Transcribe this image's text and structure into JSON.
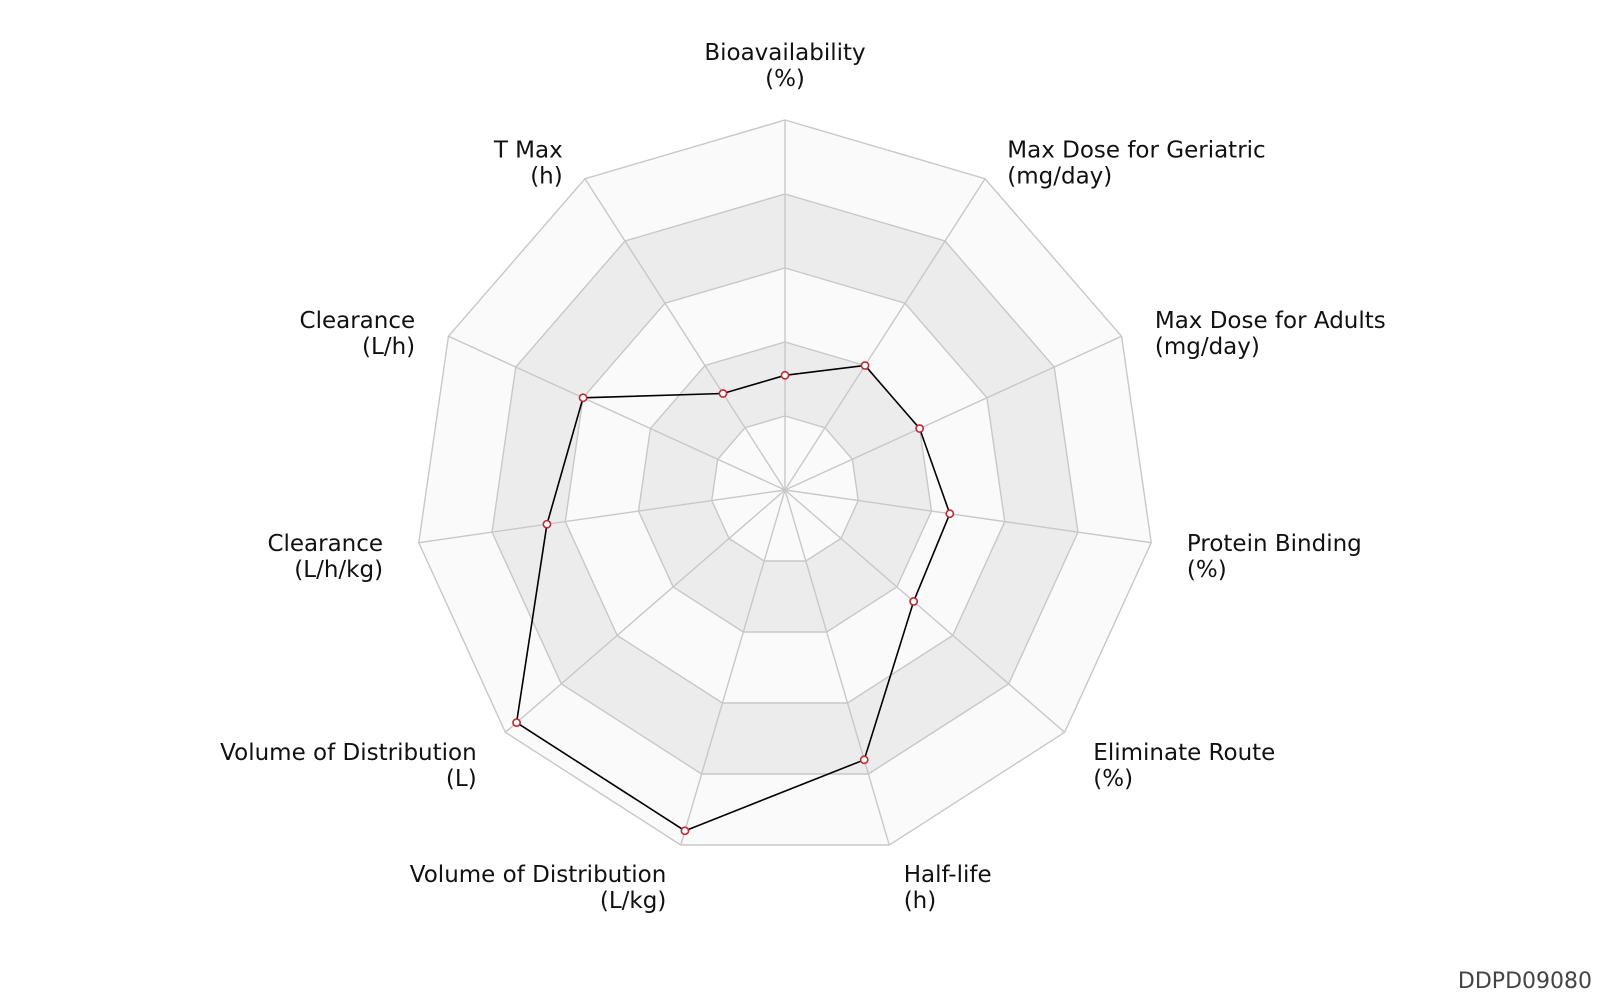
{
  "chart_data": {
    "type": "radar",
    "axes": [
      {
        "name": "Bioavailability",
        "unit": "(%)"
      },
      {
        "name": "Max Dose for Geriatric",
        "unit": "(mg/day)"
      },
      {
        "name": "Max Dose for Adults",
        "unit": "(mg/day)"
      },
      {
        "name": "Protein Binding",
        "unit": "(%)"
      },
      {
        "name": "Eliminate Route",
        "unit": "(%)"
      },
      {
        "name": "Half-life",
        "unit": "(h)"
      },
      {
        "name": "Volume of Distribution",
        "unit": "(L/kg)"
      },
      {
        "name": "Volume of Distribution",
        "unit": "(L)"
      },
      {
        "name": "Clearance",
        "unit": "(L/h/kg)"
      },
      {
        "name": "Clearance",
        "unit": "(L/h)"
      },
      {
        "name": "T Max",
        "unit": "(h)"
      }
    ],
    "levels": 5,
    "range": [
      0,
      1
    ],
    "values": [
      0.31,
      0.4,
      0.4,
      0.45,
      0.46,
      0.76,
      0.96,
      0.96,
      0.65,
      0.6,
      0.31
    ],
    "grid": true,
    "colors": {
      "band_dark": "#ececec",
      "band_light": "#fafafa",
      "grid_line": "#c8c8c8",
      "series_line": "#000000",
      "marker_stroke": "#c0282d",
      "marker_fill": "#ffffff"
    }
  },
  "footer": {
    "code": "DDPD09080"
  }
}
